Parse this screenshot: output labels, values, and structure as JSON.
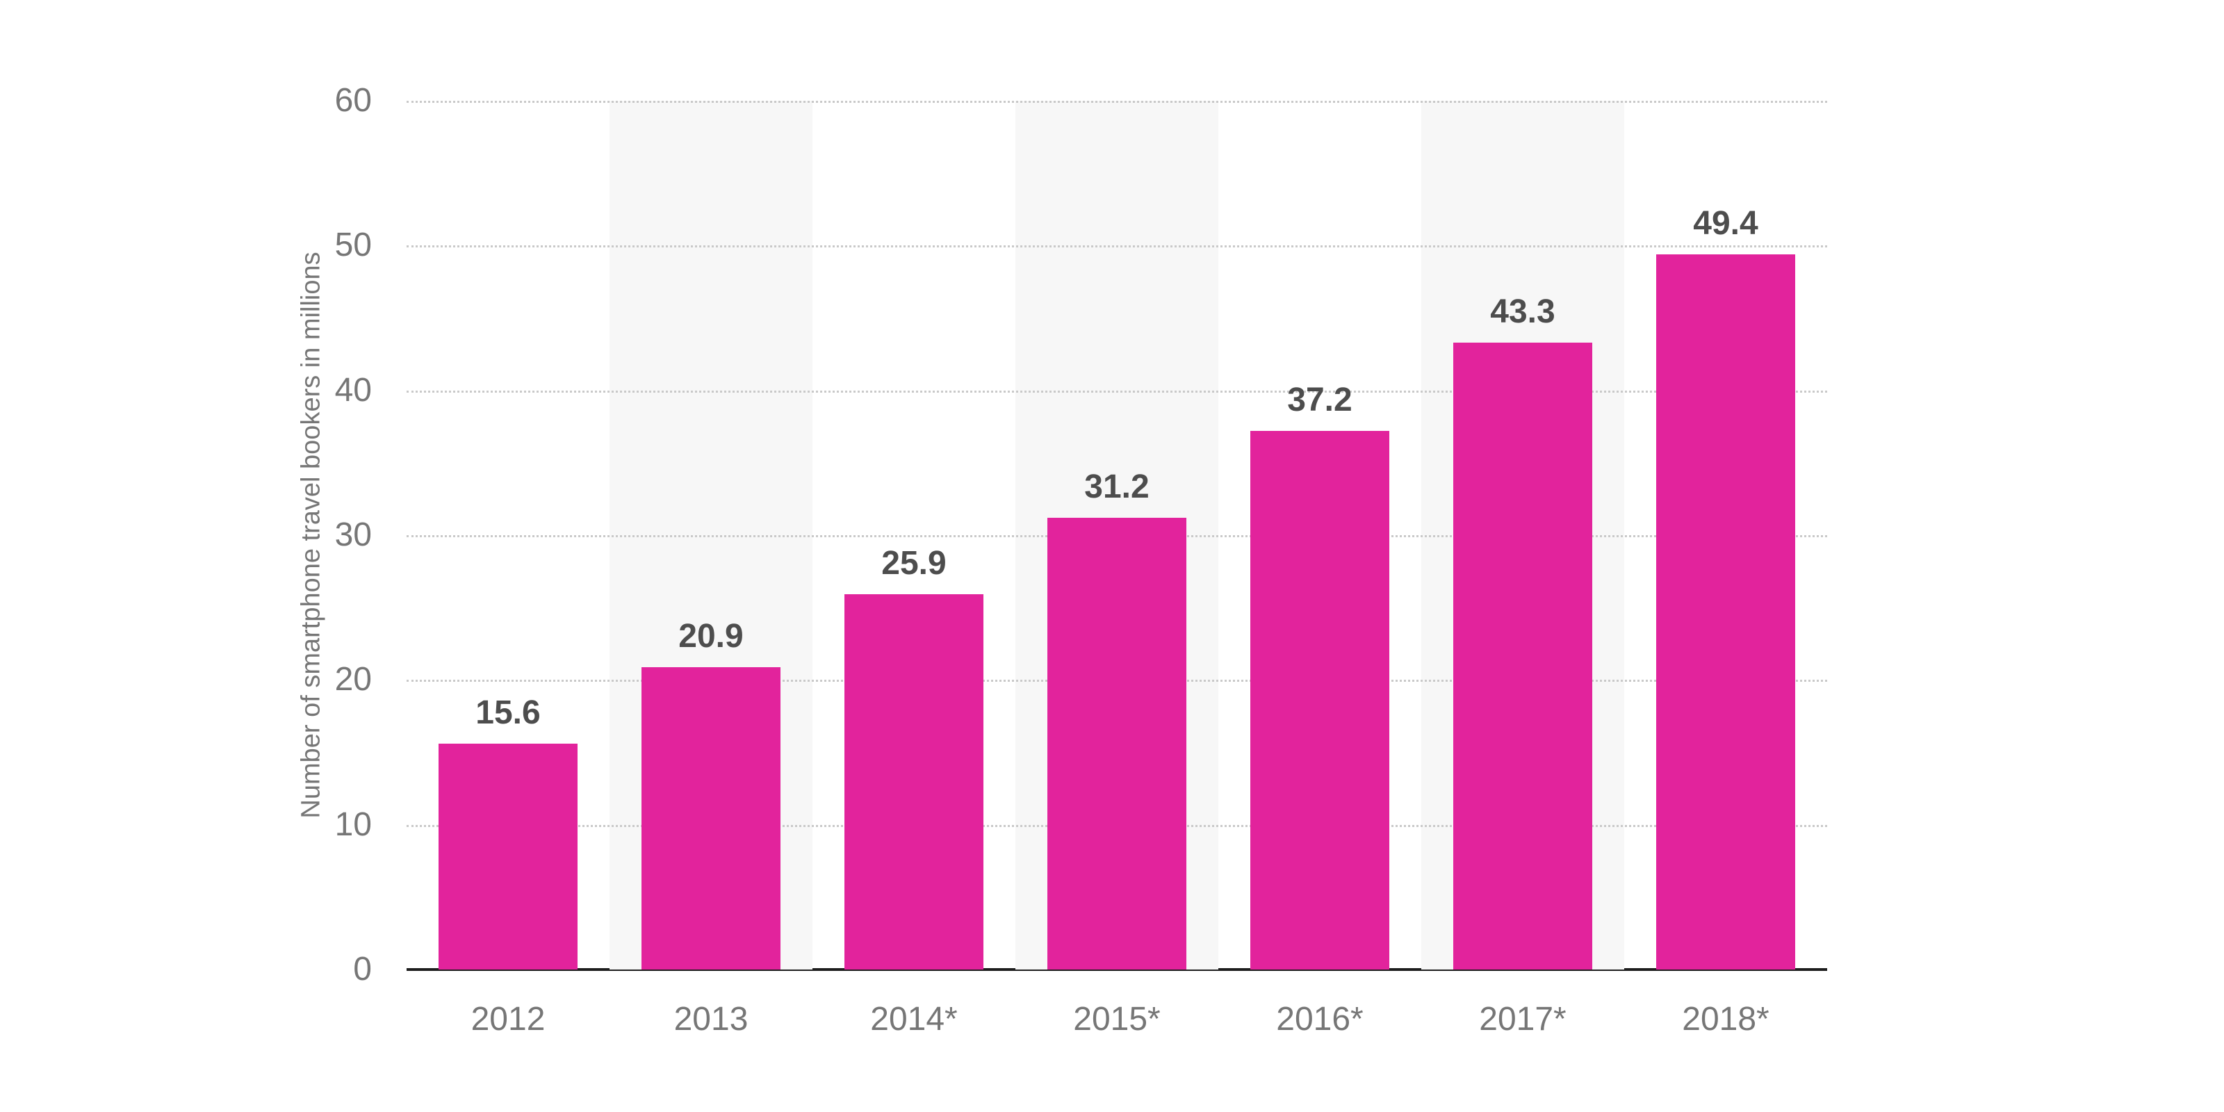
{
  "chart_data": {
    "type": "bar",
    "categories": [
      "2012",
      "2013",
      "2014*",
      "2015*",
      "2016*",
      "2017*",
      "2018*"
    ],
    "values": [
      15.6,
      20.9,
      25.9,
      31.2,
      37.2,
      43.3,
      49.4
    ],
    "value_labels": [
      "15.6",
      "20.9",
      "25.9",
      "31.2",
      "37.2",
      "43.3",
      "49.4"
    ],
    "ylabel": "Number of smartphone travel bookers in millions",
    "xlabel": "",
    "ylim": [
      0,
      60
    ],
    "yticks": [
      0,
      10,
      20,
      30,
      40,
      50,
      60
    ],
    "grid": "horizontal dotted lines, no vertical gridlines",
    "legend": "none",
    "shaded_category_indices": [
      1,
      3,
      5
    ],
    "colors": {
      "bar": "#e2239c",
      "plot_band": "#f7f7f7",
      "grid_line": "#c9c9c9",
      "axis_line": "#1d1d1d",
      "tick_text": "#767676",
      "value_label_text": "#4d4d4d",
      "background": "#ffffff"
    }
  }
}
